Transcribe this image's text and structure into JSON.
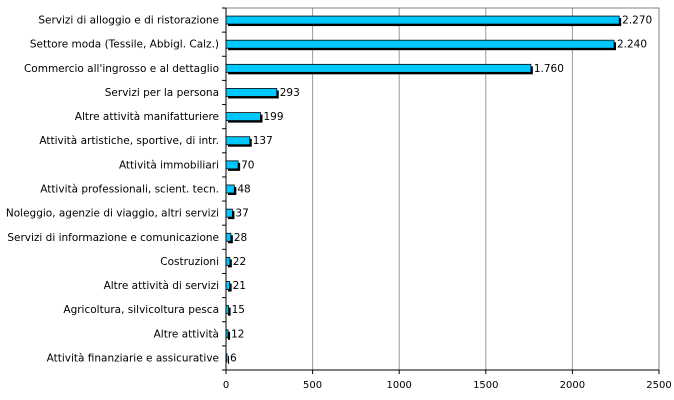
{
  "chart_data": {
    "type": "bar",
    "orientation": "horizontal",
    "categories": [
      "Servizi di alloggio e di ristorazione",
      "Settore moda (Tessile, Abbigl. Calz.)",
      "Commercio all'ingrosso e al dettaglio",
      "Servizi per la persona",
      "Altre attività manifatturiere",
      "Attività artistiche, sportive, di intr.",
      "Attività immobiliari",
      "Attività professionali, scient. tecn.",
      "Noleggio, agenzie di viaggio, altri servizi",
      "Servizi di informazione e comunicazione",
      "Costruzioni",
      "Altre attività di servizi",
      "Agricoltura, silvicoltura pesca",
      "Altre attività",
      "Attività finanziarie e assicurative"
    ],
    "values": [
      2270,
      2240,
      1760,
      293,
      199,
      137,
      70,
      48,
      37,
      28,
      22,
      21,
      15,
      12,
      6
    ],
    "value_labels": [
      "2.270",
      "2.240",
      "1.760",
      "293",
      "199",
      "137",
      "70",
      "48",
      "37",
      "28",
      "22",
      "21",
      "15",
      "12",
      "6"
    ],
    "xlim": [
      0,
      2500
    ],
    "xticks": [
      0,
      500,
      1000,
      1500,
      2000,
      2500
    ],
    "xtick_labels": [
      "0",
      "500",
      "1000",
      "1500",
      "2000",
      "2500"
    ],
    "grid": "vertical",
    "title": "",
    "xlabel": "",
    "ylabel": "",
    "colors": {
      "bar": "#00c8ff",
      "bar_edge": "#000000",
      "shadow": "#000000",
      "grid": "#9a9a9a",
      "frame": "#808080"
    }
  }
}
